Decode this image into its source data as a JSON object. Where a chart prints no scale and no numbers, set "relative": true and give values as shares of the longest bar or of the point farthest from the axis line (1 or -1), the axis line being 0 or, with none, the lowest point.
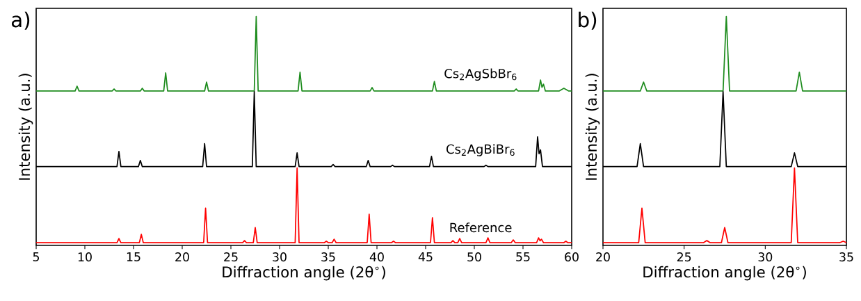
{
  "chart_data": [
    {
      "type": "line",
      "title": "a)",
      "xlabel": "Diffraction angle (2θ$^{∘}$)",
      "ylabel": "Intensity (a.u.)",
      "relative": true,
      "tick_labels": "x",
      "xlim": [
        5,
        60
      ],
      "xticks": [
        5,
        10,
        15,
        20,
        25,
        30,
        35,
        40,
        45,
        50,
        55,
        60
      ],
      "line_style": "solid",
      "series": [
        {
          "name": "Cs$_{2}$AgSbBr$_{6}$",
          "color": "#1e8c1e",
          "x": [
            5,
            9.0,
            9.2,
            9.4,
            12.8,
            13.0,
            13.2,
            15.7,
            15.9,
            16.1,
            18.1,
            18.3,
            18.5,
            22.3,
            22.5,
            22.7,
            27.4,
            27.6,
            27.8,
            31.9,
            32.1,
            32.3,
            39.3,
            39.5,
            39.7,
            45.7,
            45.9,
            46.1,
            54.1,
            54.3,
            54.5,
            56.6,
            56.8,
            56.95,
            57.1,
            57.3,
            58.7,
            59.2,
            59.7,
            60
          ],
          "values": [
            0.674,
            0.674,
            0.695,
            0.674,
            0.674,
            0.683,
            0.674,
            0.674,
            0.686,
            0.674,
            0.674,
            0.753,
            0.674,
            0.674,
            0.713,
            0.674,
            0.674,
            1.0,
            0.674,
            0.674,
            0.756,
            0.674,
            0.674,
            0.689,
            0.674,
            0.674,
            0.716,
            0.674,
            0.674,
            0.683,
            0.674,
            0.674,
            0.722,
            0.69,
            0.704,
            0.674,
            0.674,
            0.686,
            0.674,
            0.674
          ]
        },
        {
          "name": "Cs$_{2}$AgBiBr$_{6}$",
          "color": "#000000",
          "x": [
            5,
            13.3,
            13.5,
            13.7,
            15.5,
            15.7,
            15.9,
            22.1,
            22.3,
            22.5,
            27.2,
            27.4,
            27.6,
            31.6,
            31.8,
            32.0,
            35.3,
            35.5,
            35.7,
            38.9,
            39.1,
            39.3,
            41.4,
            41.6,
            41.8,
            45.4,
            45.6,
            45.8,
            51.0,
            51.2,
            51.4,
            56.3,
            56.5,
            56.65,
            56.8,
            57.0,
            60
          ],
          "values": [
            0.344,
            0.344,
            0.41,
            0.344,
            0.344,
            0.371,
            0.344,
            0.344,
            0.444,
            0.344,
            0.344,
            0.671,
            0.344,
            0.344,
            0.404,
            0.344,
            0.344,
            0.353,
            0.344,
            0.344,
            0.371,
            0.344,
            0.344,
            0.35,
            0.344,
            0.344,
            0.389,
            0.344,
            0.344,
            0.35,
            0.344,
            0.344,
            0.474,
            0.4,
            0.417,
            0.344,
            0.344
          ]
        },
        {
          "name": "Reference",
          "color": "#ff0000",
          "x": [
            5,
            13.3,
            13.5,
            13.7,
            15.6,
            15.8,
            16.0,
            22.2,
            22.4,
            22.6,
            26.2,
            26.4,
            26.6,
            27.3,
            27.5,
            27.7,
            31.6,
            31.8,
            32.0,
            34.6,
            34.8,
            35.0,
            35.4,
            35.6,
            35.8,
            39.0,
            39.2,
            39.4,
            41.5,
            41.7,
            41.9,
            45.5,
            45.7,
            45.9,
            47.6,
            47.8,
            48.0,
            48.3,
            48.5,
            48.7,
            51.2,
            51.4,
            51.6,
            53.8,
            54.0,
            54.2,
            56.4,
            56.6,
            56.75,
            56.9,
            57.1,
            59.2,
            59.4,
            59.6,
            60
          ],
          "values": [
            0.012,
            0.012,
            0.03,
            0.012,
            0.012,
            0.048,
            0.012,
            0.012,
            0.163,
            0.012,
            0.012,
            0.021,
            0.012,
            0.012,
            0.078,
            0.012,
            0.012,
            0.338,
            0.012,
            0.012,
            0.018,
            0.012,
            0.012,
            0.027,
            0.012,
            0.012,
            0.136,
            0.012,
            0.012,
            0.018,
            0.012,
            0.012,
            0.121,
            0.012,
            0.012,
            0.021,
            0.012,
            0.012,
            0.03,
            0.012,
            0.012,
            0.033,
            0.012,
            0.012,
            0.024,
            0.012,
            0.012,
            0.033,
            0.02,
            0.027,
            0.012,
            0.012,
            0.018,
            0.012,
            0.012
          ]
        }
      ]
    },
    {
      "type": "line",
      "title": "b)",
      "xlabel": "Diffraction angle (2θ$^{∘}$)",
      "ylabel": "Intensity (a.u.)",
      "relative": true,
      "tick_labels": "x",
      "xlim": [
        20,
        35
      ],
      "xticks": [
        20,
        25,
        30,
        35
      ],
      "line_style": "solid",
      "series": [
        {
          "color": "#1e8c1e",
          "x": [
            20,
            22.3,
            22.5,
            22.7,
            27.4,
            27.6,
            27.8,
            31.9,
            32.1,
            32.3,
            35
          ],
          "values": [
            0.674,
            0.674,
            0.713,
            0.674,
            0.674,
            1.0,
            0.674,
            0.674,
            0.756,
            0.674,
            0.674
          ]
        },
        {
          "color": "#000000",
          "x": [
            20,
            22.1,
            22.3,
            22.5,
            27.2,
            27.4,
            27.6,
            31.6,
            31.8,
            32.0,
            35
          ],
          "values": [
            0.344,
            0.344,
            0.444,
            0.344,
            0.344,
            0.671,
            0.344,
            0.344,
            0.404,
            0.344,
            0.344
          ]
        },
        {
          "color": "#ff0000",
          "x": [
            20,
            22.2,
            22.4,
            22.6,
            26.2,
            26.4,
            26.6,
            27.3,
            27.5,
            27.7,
            31.6,
            31.8,
            32.0,
            34.6,
            34.8,
            35
          ],
          "values": [
            0.012,
            0.012,
            0.163,
            0.012,
            0.012,
            0.021,
            0.012,
            0.012,
            0.078,
            0.012,
            0.012,
            0.338,
            0.012,
            0.012,
            0.018,
            0.012
          ]
        }
      ]
    }
  ]
}
